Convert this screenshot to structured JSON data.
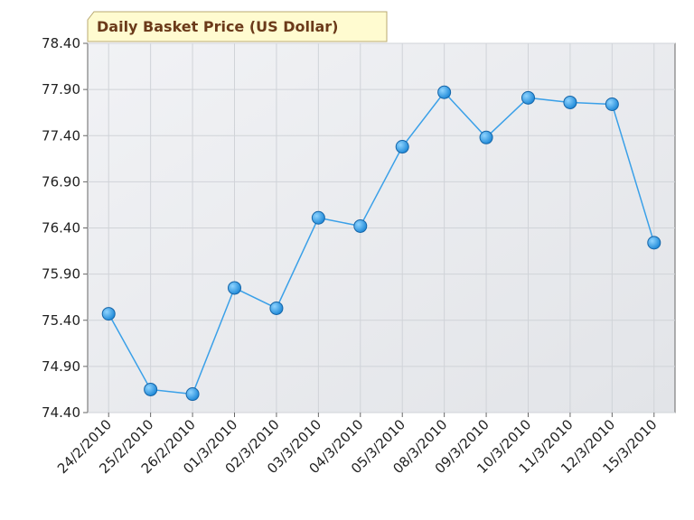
{
  "chart_data": {
    "type": "line",
    "title": "Daily Basket Price (US Dollar)",
    "categories": [
      "24/2/2010",
      "25/2/2010",
      "26/2/2010",
      "01/3/2010",
      "02/3/2010",
      "03/3/2010",
      "04/3/2010",
      "05/3/2010",
      "08/3/2010",
      "09/3/2010",
      "10/3/2010",
      "11/3/2010",
      "12/3/2010",
      "15/3/2010"
    ],
    "values": [
      75.47,
      74.65,
      74.6,
      75.75,
      75.53,
      76.51,
      76.42,
      77.28,
      77.87,
      77.38,
      77.81,
      77.76,
      77.74,
      76.24
    ],
    "color": "#3aa0e8",
    "ylim": [
      74.4,
      78.4
    ],
    "yticks": [
      {
        "value": 74.4,
        "label": "74.40"
      },
      {
        "value": 74.9,
        "label": "74.90"
      },
      {
        "value": 75.4,
        "label": "75.40"
      },
      {
        "value": 75.9,
        "label": "75.90"
      },
      {
        "value": 76.4,
        "label": "76.40"
      },
      {
        "value": 76.9,
        "label": "76.90"
      },
      {
        "value": 77.4,
        "label": "77.40"
      },
      {
        "value": 77.9,
        "label": "77.90"
      },
      {
        "value": 78.4,
        "label": "78.40"
      }
    ],
    "grid": true
  }
}
